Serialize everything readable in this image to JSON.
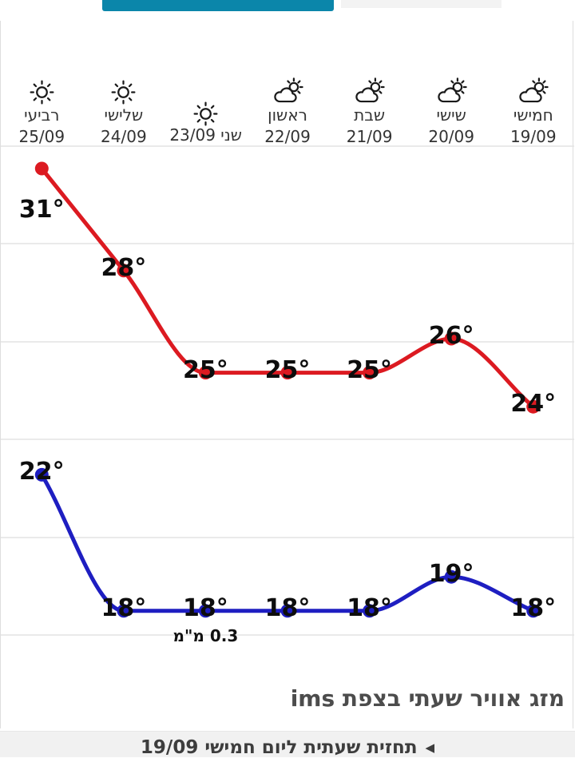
{
  "theme": {
    "active_tab_color": "#0b86aa",
    "inactive_tab_color": "#f3f3f3",
    "max_series_color": "#dc1a21",
    "min_series_color": "#1e1ec1",
    "gridline_color": "#e4e4e4"
  },
  "forecast_days": [
    {
      "name": "רביעי",
      "date": "25/09",
      "icon": "sun",
      "inline": false
    },
    {
      "name": "שלישי",
      "date": "24/09",
      "icon": "sun",
      "inline": false
    },
    {
      "name": "שני",
      "date": "23/09",
      "icon": "sun",
      "inline": true
    },
    {
      "name": "ראשון",
      "date": "22/09",
      "icon": "sun-cloud",
      "inline": false
    },
    {
      "name": "שבת",
      "date": "21/09",
      "icon": "sun-cloud",
      "inline": false
    },
    {
      "name": "שישי",
      "date": "20/09",
      "icon": "sun-cloud",
      "inline": false
    },
    {
      "name": "חמישי",
      "date": "19/09",
      "icon": "sun-cloud",
      "inline": false
    }
  ],
  "chart_data": {
    "type": "line",
    "direction": "rtl",
    "categories": [
      "25/09",
      "24/09",
      "23/09",
      "22/09",
      "21/09",
      "20/09",
      "19/09"
    ],
    "series": [
      {
        "name": "max-temp",
        "color_key": "max_series_color",
        "values": [
          31,
          28,
          25,
          25,
          25,
          26,
          24
        ]
      },
      {
        "name": "min-temp",
        "color_key": "min_series_color",
        "values": [
          22,
          18,
          18,
          18,
          18,
          19,
          18
        ]
      }
    ],
    "point_label_suffix": "°",
    "precipitation_note": {
      "text": "0.3 מ\"מ",
      "category_index": 2,
      "series": "min-temp"
    },
    "grid": true,
    "gridlines": 6,
    "axes_hidden": true,
    "ylim": [
      17,
      32
    ]
  },
  "footer_heading": "מזג אוויר שעתי בצפת ims",
  "bottom_bar": {
    "arrow": "◀",
    "label": "תחזית שעתית ליום חמישי 19/09"
  }
}
